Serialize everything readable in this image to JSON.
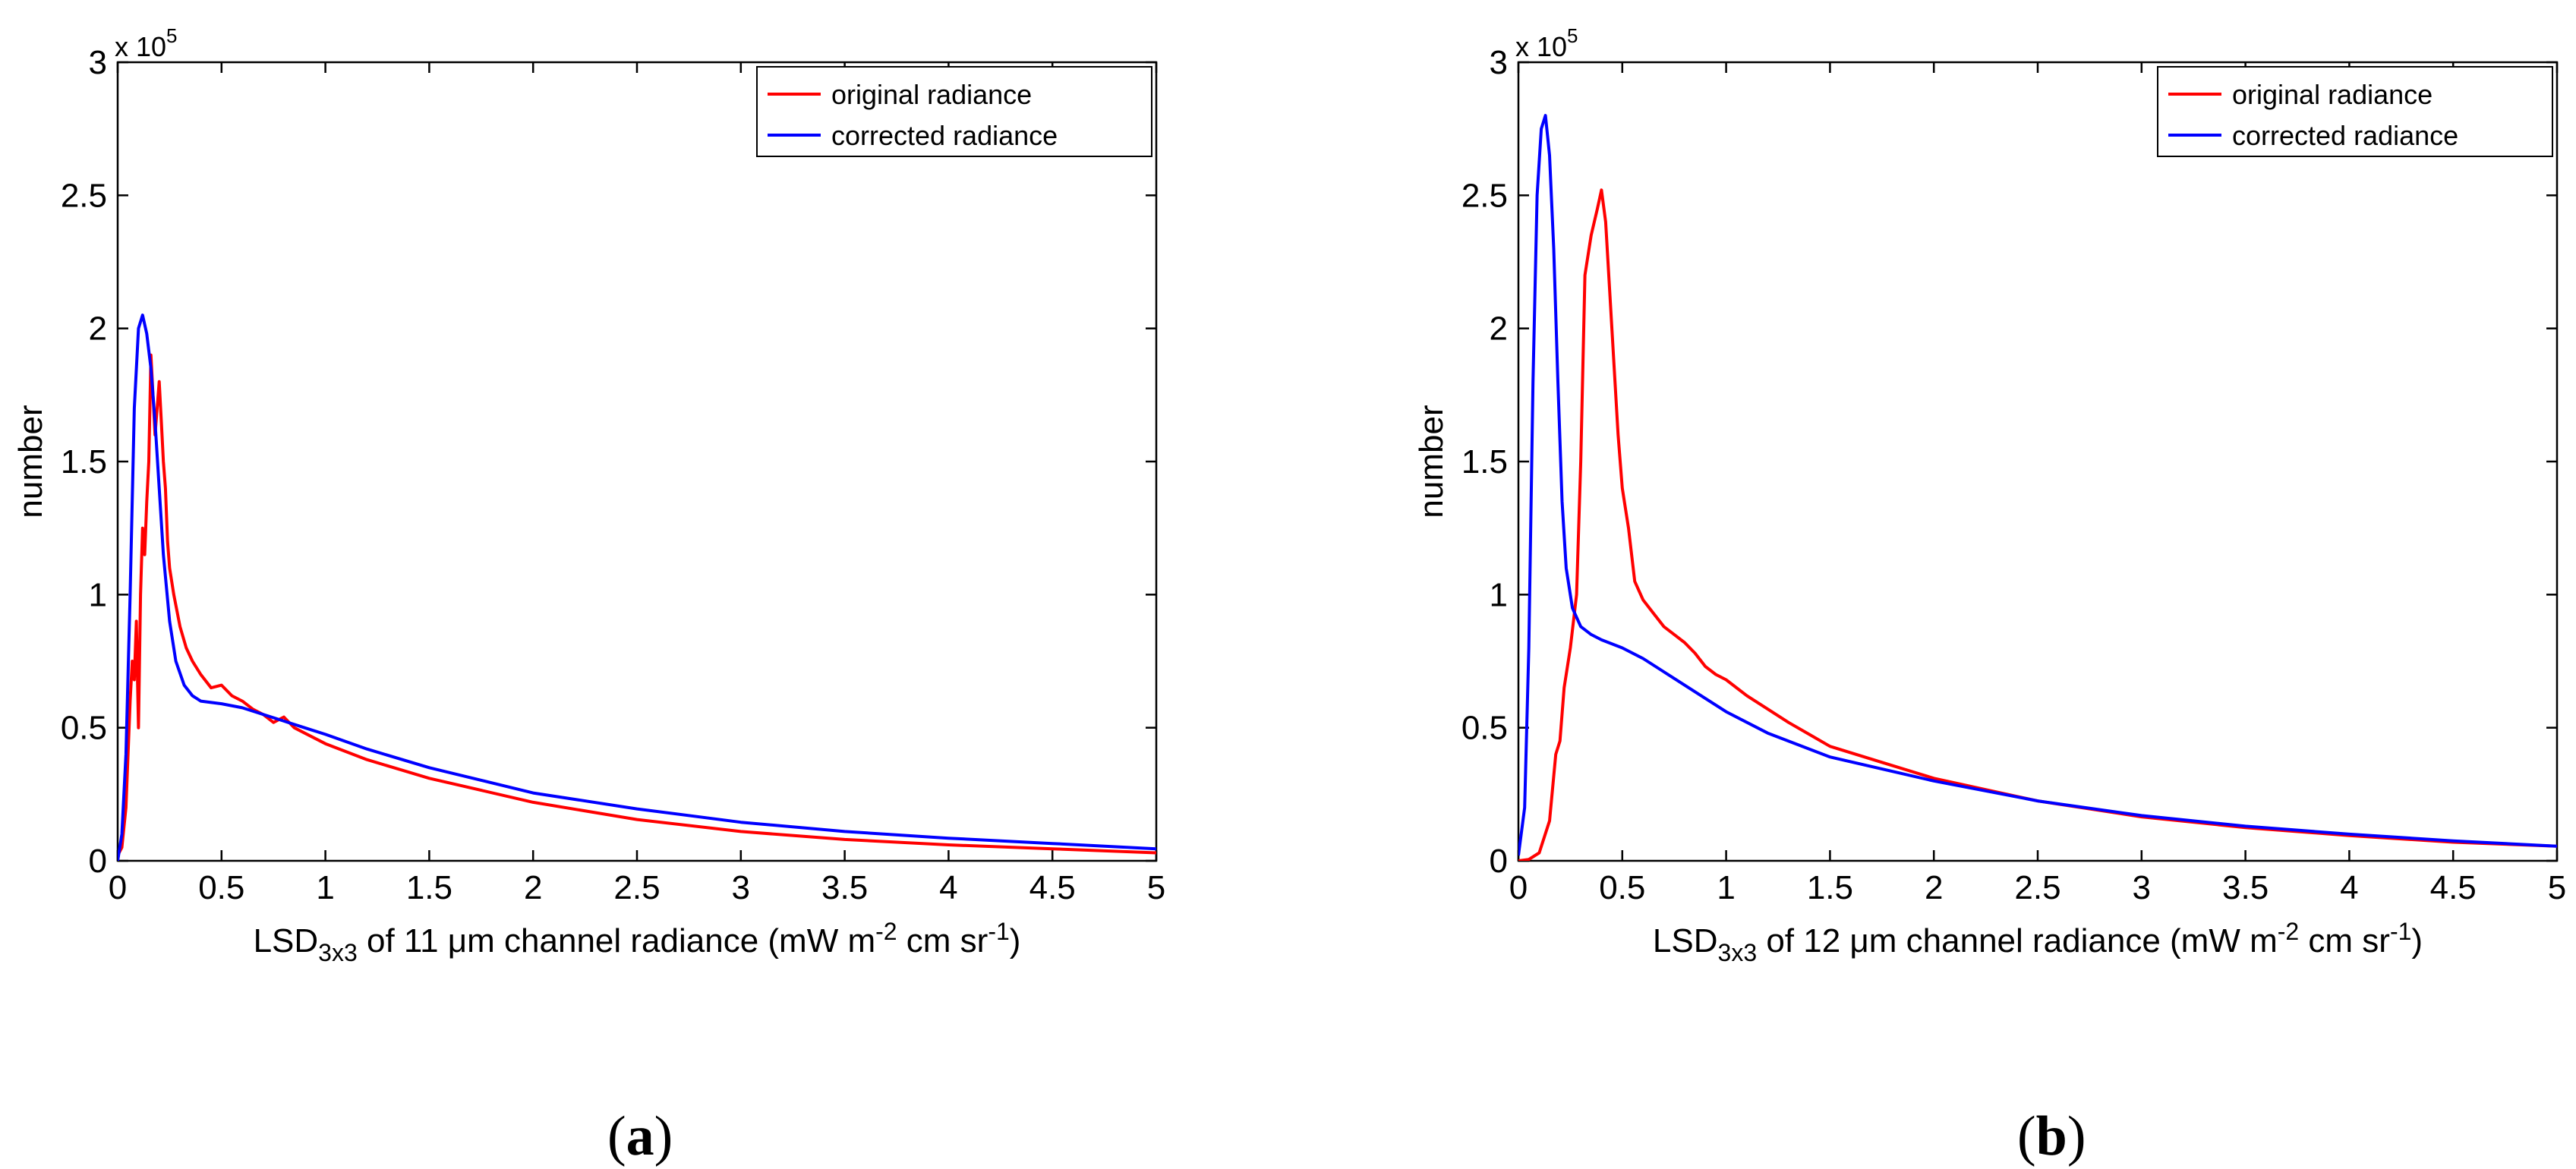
{
  "chart_data": [
    {
      "type": "line",
      "panel": "a",
      "caption": "a",
      "ylabel": "number",
      "y_exponent": "x 10",
      "y_exponent_power": "5",
      "xlabel": {
        "pre": "LSD",
        "sub": "3x3",
        "mid": " of 11 ",
        "mu": "μ",
        "post": "m channel radiance (mW m",
        "sup1": "-2",
        "post2": " cm sr",
        "sup2": "-1",
        "end": ")"
      },
      "xlim": [
        0,
        5
      ],
      "ylim": [
        0,
        300000
      ],
      "xticks": [
        0,
        0.5,
        1,
        1.5,
        2,
        2.5,
        3,
        3.5,
        4,
        4.5,
        5
      ],
      "xtick_labels": [
        "0",
        "0.5",
        "1",
        "1.5",
        "2",
        "2.5",
        "3",
        "3.5",
        "4",
        "4.5",
        "5"
      ],
      "yticks": [
        0,
        50000,
        100000,
        150000,
        200000,
        250000,
        300000
      ],
      "ytick_labels": [
        "0",
        "0.5",
        "1",
        "1.5",
        "2",
        "2.5",
        "3"
      ],
      "legend": {
        "position": "top-right",
        "entries": [
          "original radiance",
          "corrected radiance"
        ]
      },
      "series": [
        {
          "name": "original radiance",
          "color": "#ff0000",
          "x": [
            0,
            0.02,
            0.04,
            0.06,
            0.07,
            0.08,
            0.09,
            0.1,
            0.11,
            0.12,
            0.13,
            0.14,
            0.15,
            0.16,
            0.17,
            0.18,
            0.19,
            0.2,
            0.21,
            0.22,
            0.23,
            0.24,
            0.25,
            0.27,
            0.3,
            0.33,
            0.36,
            0.4,
            0.45,
            0.5,
            0.55,
            0.6,
            0.65,
            0.7,
            0.75,
            0.8,
            0.85,
            0.9,
            1.0,
            1.2,
            1.5,
            2.0,
            2.5,
            3.0,
            3.5,
            4.0,
            4.5,
            5.0
          ],
          "y": [
            2000,
            5000,
            20000,
            60000,
            75000,
            68000,
            90000,
            50000,
            100000,
            125000,
            115000,
            135000,
            150000,
            190000,
            175000,
            160000,
            170000,
            180000,
            165000,
            150000,
            140000,
            120000,
            110000,
            100000,
            88000,
            80000,
            75000,
            70000,
            65000,
            66000,
            62000,
            60000,
            57000,
            55000,
            52000,
            54000,
            50000,
            48000,
            44000,
            38000,
            31000,
            22000,
            15500,
            11000,
            8000,
            6000,
            4500,
            3000
          ]
        },
        {
          "name": "corrected radiance",
          "color": "#0000ff",
          "x": [
            0,
            0.02,
            0.04,
            0.06,
            0.08,
            0.1,
            0.12,
            0.14,
            0.16,
            0.18,
            0.2,
            0.22,
            0.25,
            0.28,
            0.32,
            0.36,
            0.4,
            0.45,
            0.5,
            0.6,
            0.7,
            0.8,
            0.9,
            1.0,
            1.2,
            1.5,
            2.0,
            2.5,
            3.0,
            3.5,
            4.0,
            4.5,
            5.0
          ],
          "y": [
            0,
            10000,
            40000,
            100000,
            170000,
            200000,
            205000,
            198000,
            185000,
            165000,
            140000,
            115000,
            90000,
            75000,
            66000,
            62000,
            60000,
            59500,
            59000,
            57500,
            55000,
            52500,
            50000,
            47500,
            42000,
            35000,
            25500,
            19500,
            14500,
            11000,
            8500,
            6500,
            4500
          ]
        }
      ]
    },
    {
      "type": "line",
      "panel": "b",
      "caption": "b",
      "ylabel": "number",
      "y_exponent": "x 10",
      "y_exponent_power": "5",
      "xlabel": {
        "pre": "LSD",
        "sub": "3x3",
        "mid": " of 12 ",
        "mu": "μ",
        "post": "m channel radiance (mW m",
        "sup1": "-2",
        "post2": " cm sr",
        "sup2": "-1",
        "end": ")"
      },
      "xlim": [
        0,
        5
      ],
      "ylim": [
        0,
        300000
      ],
      "xticks": [
        0,
        0.5,
        1,
        1.5,
        2,
        2.5,
        3,
        3.5,
        4,
        4.5,
        5
      ],
      "xtick_labels": [
        "0",
        "0.5",
        "1",
        "1.5",
        "2",
        "2.5",
        "3",
        "3.5",
        "4",
        "4.5",
        "5"
      ],
      "yticks": [
        0,
        50000,
        100000,
        150000,
        200000,
        250000,
        300000
      ],
      "ytick_labels": [
        "0",
        "0.5",
        "1",
        "1.5",
        "2",
        "2.5",
        "3"
      ],
      "legend": {
        "position": "top-right",
        "entries": [
          "original radiance",
          "corrected radiance"
        ]
      },
      "series": [
        {
          "name": "original radiance",
          "color": "#ff0000",
          "x": [
            0,
            0.05,
            0.1,
            0.15,
            0.18,
            0.2,
            0.22,
            0.25,
            0.28,
            0.3,
            0.32,
            0.35,
            0.38,
            0.4,
            0.42,
            0.45,
            0.48,
            0.5,
            0.53,
            0.56,
            0.6,
            0.65,
            0.7,
            0.75,
            0.8,
            0.85,
            0.9,
            0.95,
            1.0,
            1.1,
            1.2,
            1.3,
            1.4,
            1.5,
            1.75,
            2.0,
            2.5,
            3.0,
            3.5,
            4.0,
            4.5,
            5.0
          ],
          "y": [
            0,
            500,
            3000,
            15000,
            40000,
            45000,
            65000,
            80000,
            100000,
            150000,
            220000,
            235000,
            245000,
            252000,
            240000,
            200000,
            160000,
            140000,
            125000,
            105000,
            98000,
            93000,
            88000,
            85000,
            82000,
            78000,
            73000,
            70000,
            68000,
            62000,
            57000,
            52000,
            47500,
            43000,
            37000,
            31000,
            22500,
            16500,
            12500,
            9500,
            7000,
            5500
          ]
        },
        {
          "name": "corrected radiance",
          "color": "#0000ff",
          "x": [
            0,
            0.03,
            0.05,
            0.07,
            0.09,
            0.11,
            0.13,
            0.15,
            0.17,
            0.19,
            0.21,
            0.23,
            0.26,
            0.3,
            0.35,
            0.4,
            0.5,
            0.6,
            0.7,
            0.8,
            0.9,
            1.0,
            1.2,
            1.5,
            2.0,
            2.5,
            3.0,
            3.5,
            4.0,
            4.5,
            5.0
          ],
          "y": [
            2000,
            20000,
            80000,
            180000,
            250000,
            275000,
            280000,
            265000,
            230000,
            180000,
            135000,
            110000,
            95000,
            88000,
            85000,
            83000,
            80000,
            76000,
            71000,
            66000,
            61000,
            56000,
            48000,
            39000,
            30000,
            22500,
            17000,
            13000,
            10000,
            7500,
            5500
          ]
        }
      ]
    }
  ]
}
